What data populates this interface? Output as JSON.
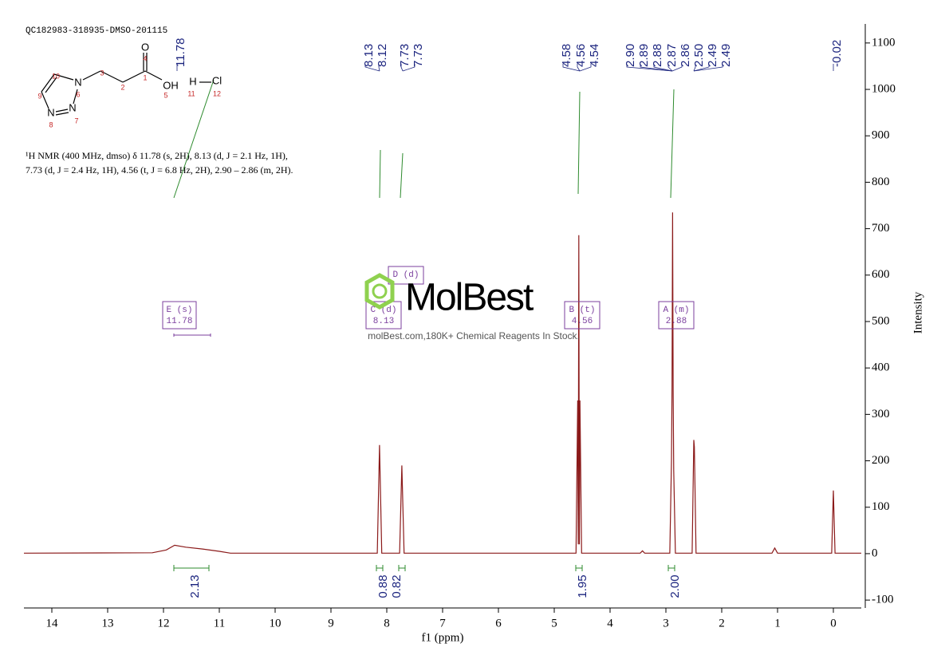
{
  "chart_data": {
    "type": "line",
    "header": "QC182983-318935-DMSO-201115",
    "description": [
      "¹H NMR (400 MHz, dmso) δ 11.78 (s, 2H), 8.13 (d, J = 2.1 Hz, 1H),",
      "7.73 (d, J = 2.4 Hz, 1H), 4.56 (t, J = 6.8 Hz, 2H), 2.90 – 2.86 (m, 2H)."
    ],
    "xlabel": "f1 (ppm)",
    "ylabel": "Intensity",
    "color": "#8b1a1a",
    "x": [
      14.5,
      12.2,
      11.95,
      11.8,
      11.6,
      11.3,
      11.0,
      10.8,
      8.17,
      8.13,
      8.09,
      7.77,
      7.73,
      7.69,
      4.61,
      4.58,
      4.57,
      4.56,
      4.55,
      4.54,
      4.51,
      3.46,
      3.42,
      3.38,
      2.93,
      2.9,
      2.89,
      2.88,
      2.87,
      2.86,
      2.83,
      2.53,
      2.5,
      2.49,
      2.46,
      1.1,
      1.05,
      1.0,
      0.03,
      0.0,
      -0.03,
      -0.5
    ],
    "values": [
      1,
      2,
      8,
      18,
      14,
      10,
      5,
      1,
      1,
      234,
      1,
      1,
      190,
      1,
      1,
      330,
      20,
      686,
      20,
      330,
      1,
      1,
      6,
      1,
      1,
      200,
      360,
      735,
      350,
      180,
      1,
      1,
      245,
      230,
      1,
      1,
      12,
      1,
      1,
      136,
      1,
      1
    ],
    "xlim": [
      14.5,
      -0.5
    ],
    "ylim": [
      -117,
      1141
    ],
    "xticks": [
      14,
      13,
      12,
      11,
      10,
      9,
      8,
      7,
      6,
      5,
      4,
      3,
      2,
      1,
      0
    ],
    "yticks": [
      -100,
      0,
      100,
      200,
      300,
      400,
      500,
      600,
      700,
      800,
      900,
      1000,
      1100
    ],
    "peak_labels": [
      "11.78",
      "8.13",
      "8.12",
      "7.73",
      "7.73",
      "4.58",
      "4.56",
      "4.54",
      "2.90",
      "2.89",
      "2.88",
      "2.87",
      "2.86",
      "2.50",
      "2.49",
      "2.49",
      "-0.02"
    ],
    "integrals": [
      "2.13",
      "0.88",
      "0.82",
      "1.95",
      "2.00"
    ],
    "multiplets": [
      {
        "label": "E (s)",
        "shift": "11.78"
      },
      {
        "label": "D (d)"
      },
      {
        "label": "C (d)",
        "shift": "8.13"
      },
      {
        "label": "B (t)",
        "shift": "4.56"
      },
      {
        "label": "A (m)",
        "shift": "2.88"
      }
    ],
    "watermark": {
      "brand": "MolBest",
      "slogan": "molBest.com,180K+ Chemical Reagents In Stock."
    },
    "molecule": {
      "atoms": [
        "O",
        "OH",
        "N",
        "N",
        "N",
        "H",
        "Cl"
      ],
      "numbers": [
        "10",
        "3",
        "4",
        "1",
        "2",
        "6",
        "9",
        "5",
        "11",
        "12",
        "8",
        "7"
      ]
    }
  }
}
